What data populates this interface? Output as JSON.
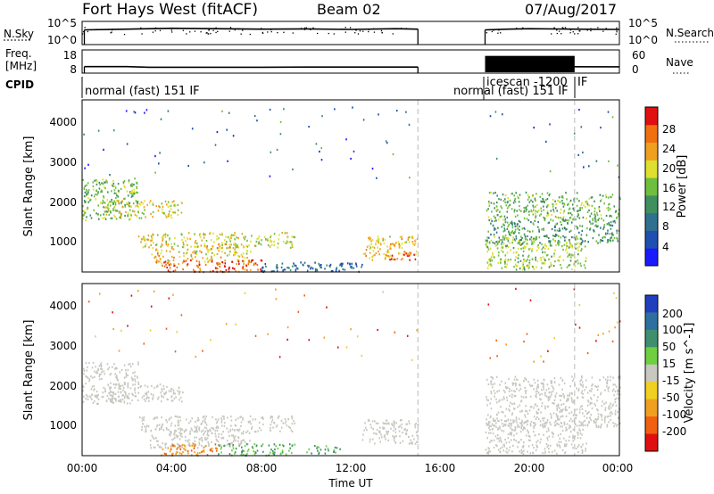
{
  "header": {
    "station": "Fort Hays West (fitACF)",
    "beam": "Beam 02",
    "date": "07/Aug/2017"
  },
  "top_panels": {
    "nsky_label": "N.Sky",
    "nsky_ticks": [
      "10^5",
      "10^0"
    ],
    "nsearch_label": "N.Search",
    "nsearch_ticks": [
      "10^5",
      "10^0"
    ],
    "freq_label_1": "Freq.",
    "freq_label_2": "[MHz]",
    "freq_ticks": [
      "18",
      "8"
    ],
    "nave_label": "Nave",
    "nave_ticks": [
      "60",
      "0"
    ],
    "cpid_label": "CPID",
    "cpid_segments": [
      {
        "label": "normal (fast) 151 IF",
        "start": 0,
        "end": 15
      },
      {
        "label": "normal (fast) 151 IF",
        "start": 18,
        "end": 22
      },
      {
        "label": "icescan -1200",
        "start": 18,
        "end": 22
      },
      {
        "label": "IF",
        "start": 22,
        "end": 24
      }
    ]
  },
  "axes": {
    "ylabel": "Slant Range [km]",
    "xlabel": "Time UT",
    "x_ticks": [
      "00:00",
      "04:00",
      "08:00",
      "12:00",
      "16:00",
      "20:00",
      "00:00"
    ],
    "y_ticks": [
      "1000",
      "2000",
      "3000",
      "4000"
    ]
  },
  "colorbars": {
    "power": {
      "label": "Power [dB]",
      "ticks": [
        "4",
        "8",
        "12",
        "16",
        "20",
        "24",
        "28"
      ],
      "colors": [
        "#1a1aff",
        "#1f4fb0",
        "#2f6f8f",
        "#3f8f5f",
        "#6fbf3f",
        "#dfdf2f",
        "#f0a020",
        "#f07010",
        "#e01010"
      ]
    },
    "velocity": {
      "label": "Velocity [m s^-1]",
      "ticks": [
        "200",
        "100",
        "50",
        "15",
        "-15",
        "-50",
        "-100",
        "-200"
      ],
      "colors": [
        "#1f3fbf",
        "#2f6fa0",
        "#3f8f6f",
        "#6fcf3f",
        "#c8c8c0",
        "#f0d020",
        "#f0a020",
        "#f06010",
        "#e01010"
      ]
    }
  },
  "chart_data": [
    {
      "type": "line",
      "title": "Fort Hays West (fitACF)",
      "series": [
        {
          "name": "N.Sky",
          "x": [
            0.1,
            2,
            4,
            6,
            8,
            10,
            12,
            14,
            15,
            18,
            19,
            20,
            22,
            24
          ],
          "values": [
            2000,
            3000,
            5000,
            4000,
            3000,
            3500,
            2500,
            4000,
            3000,
            2000,
            3000,
            4000,
            3000,
            2500
          ]
        },
        {
          "name": "Freq. [MHz]",
          "x": [
            0.1,
            2,
            3,
            8,
            10,
            15,
            18,
            24
          ],
          "values": [
            10.4,
            10.4,
            10.1,
            10.1,
            10.2,
            10.2,
            10.4,
            10.3
          ]
        },
        {
          "name": "Nave",
          "x": [
            18,
            22
          ],
          "values": [
            50,
            50
          ]
        }
      ],
      "xlim": [
        0,
        24
      ]
    },
    {
      "type": "heatmap",
      "ylabel": "Slant Range [km]",
      "colorbar_label": "Power [dB]",
      "xlim": [
        0,
        24
      ],
      "ylim": [
        180,
        4500
      ],
      "clim": [
        0,
        30
      ],
      "regions": [
        {
          "x": [
            0,
            2.5
          ],
          "y": [
            1500,
            2550
          ],
          "value": 14
        },
        {
          "x": [
            1,
            4.5
          ],
          "y": [
            1550,
            2000
          ],
          "value": 18
        },
        {
          "x": [
            2.5,
            9.5
          ],
          "y": [
            800,
            1200
          ],
          "value": 18
        },
        {
          "x": [
            3,
            7.5
          ],
          "y": [
            400,
            900
          ],
          "value": 20
        },
        {
          "x": [
            3.5,
            8.0
          ],
          "y": [
            200,
            500
          ],
          "value": 26
        },
        {
          "x": [
            8,
            12.5
          ],
          "y": [
            200,
            450
          ],
          "value": 8
        },
        {
          "x": [
            12.5,
            15
          ],
          "y": [
            500,
            1100
          ],
          "value": 20
        },
        {
          "x": [
            13.5,
            15
          ],
          "y": [
            500,
            700
          ],
          "value": 26
        },
        {
          "x": [
            18,
            24
          ],
          "y": [
            1500,
            2200
          ],
          "value": 14
        },
        {
          "x": [
            18,
            24
          ],
          "y": [
            900,
            1500
          ],
          "value": 12
        },
        {
          "x": [
            18,
            22.5
          ],
          "y": [
            250,
            1100
          ],
          "value": 16
        }
      ]
    },
    {
      "type": "heatmap",
      "ylabel": "Slant Range [km]",
      "xlabel": "Time UT",
      "colorbar_label": "Velocity [m s^-1]",
      "xlim": [
        0,
        24
      ],
      "ylim": [
        180,
        4500
      ],
      "clim": [
        -200,
        200
      ],
      "regions": [
        {
          "x": [
            0,
            2.5
          ],
          "y": [
            1500,
            2550
          ],
          "value": 0
        },
        {
          "x": [
            1,
            4.5
          ],
          "y": [
            1550,
            2000
          ],
          "value": 0
        },
        {
          "x": [
            2.5,
            9.5
          ],
          "y": [
            800,
            1200
          ],
          "value": 0
        },
        {
          "x": [
            3,
            7.5
          ],
          "y": [
            400,
            900
          ],
          "value": 0
        },
        {
          "x": [
            3.5,
            6.0
          ],
          "y": [
            200,
            500
          ],
          "value": -100
        },
        {
          "x": [
            6,
            9.5
          ],
          "y": [
            200,
            500
          ],
          "value": 30
        },
        {
          "x": [
            10,
            11.5
          ],
          "y": [
            250,
            450
          ],
          "value": 30
        },
        {
          "x": [
            12.5,
            15
          ],
          "y": [
            500,
            1100
          ],
          "value": 0
        },
        {
          "x": [
            18,
            24
          ],
          "y": [
            1500,
            2200
          ],
          "value": 0
        },
        {
          "x": [
            18,
            24
          ],
          "y": [
            900,
            1500
          ],
          "value": 0
        },
        {
          "x": [
            18,
            22.5
          ],
          "y": [
            250,
            1100
          ],
          "value": 0
        }
      ]
    }
  ]
}
